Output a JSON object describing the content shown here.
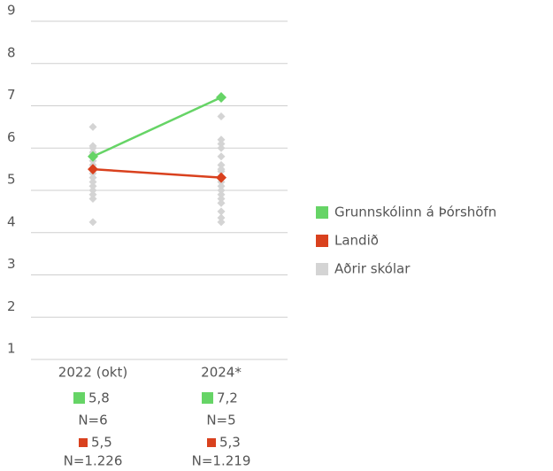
{
  "chart_data": {
    "type": "line",
    "categories": [
      "2022 (okt)",
      "2024*"
    ],
    "ylim": [
      1,
      9
    ],
    "yticks": [
      1,
      2,
      3,
      4,
      5,
      6,
      7,
      8,
      9
    ],
    "grid": true,
    "legend": "right",
    "series": [
      {
        "name": "Grunnskólinn á Þórshöfn",
        "color": "#66d466",
        "values": [
          5.8,
          7.2
        ],
        "value_labels": [
          "5,8",
          "7,2"
        ],
        "n_labels": [
          "N=6",
          "N=5"
        ]
      },
      {
        "name": "Landið",
        "color": "#d9411e",
        "values": [
          5.5,
          5.3
        ],
        "value_labels": [
          "5,5",
          "5,3"
        ],
        "n_labels": [
          "N=1.226",
          "N=1.219"
        ]
      },
      {
        "name": "Aðrir skólar",
        "color": "#d4d4d4",
        "values": [
          [
            6.5,
            6.05,
            6.0,
            5.9,
            5.85,
            5.7,
            5.6,
            5.5,
            5.4,
            5.3,
            5.2,
            5.1,
            5.0,
            4.9,
            4.8,
            4.25
          ],
          [
            6.75,
            6.2,
            6.1,
            6.0,
            5.8,
            5.6,
            5.5,
            5.45,
            5.3,
            5.2,
            5.1,
            5.0,
            4.9,
            4.8,
            4.7,
            4.5,
            4.35,
            4.25
          ]
        ]
      }
    ]
  }
}
